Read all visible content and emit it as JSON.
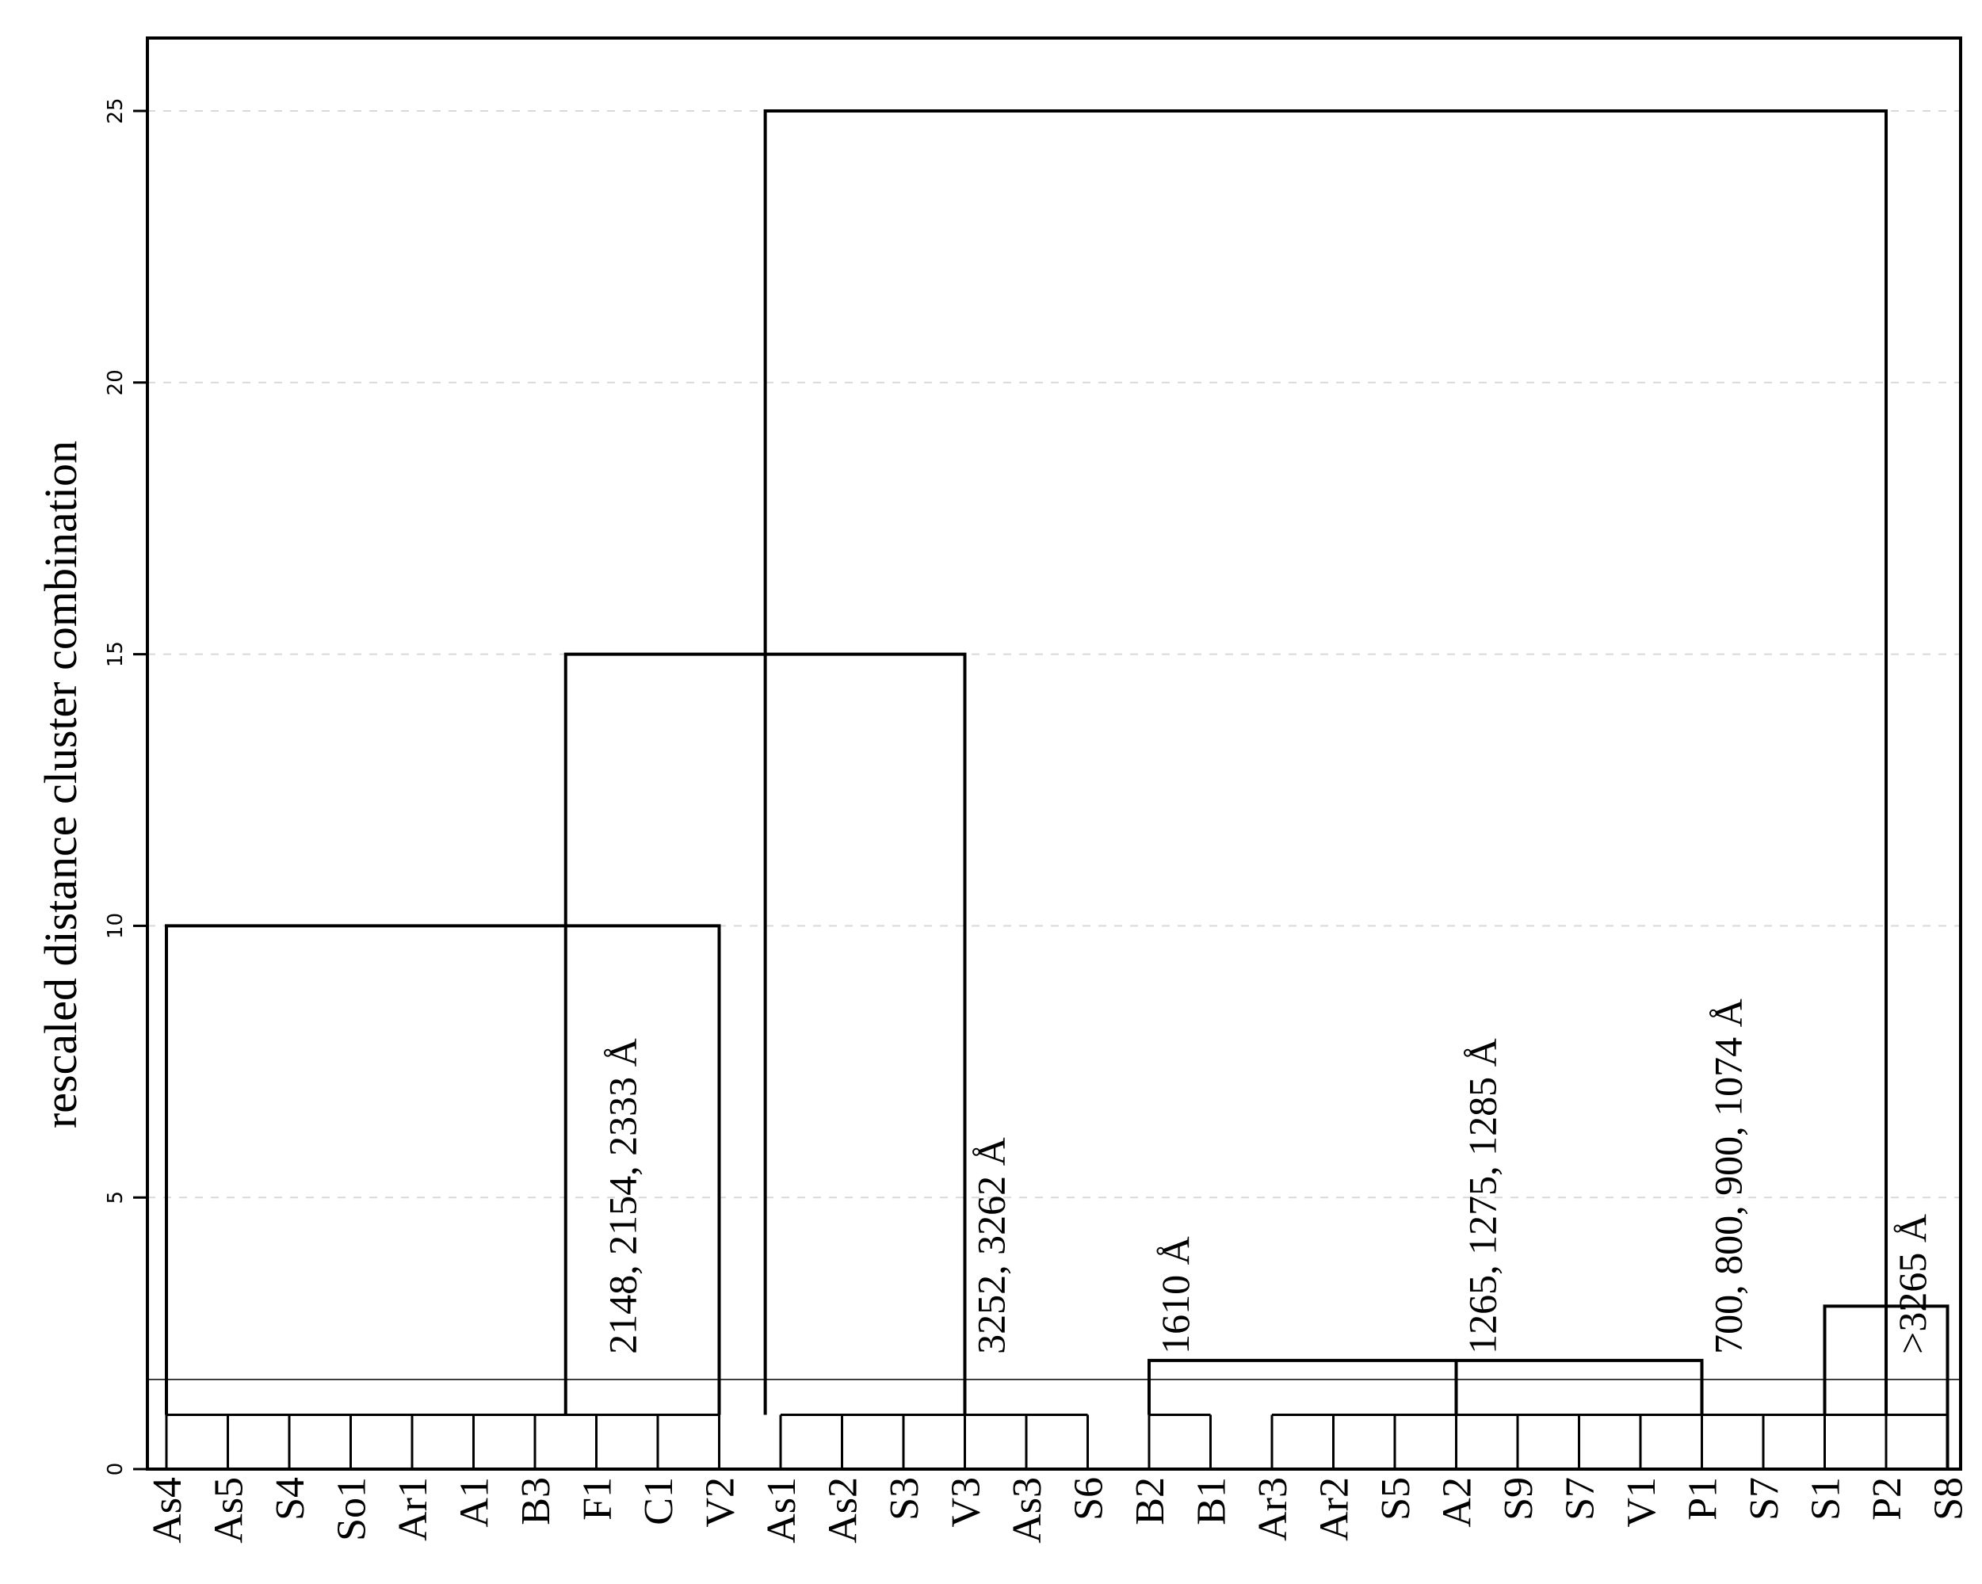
{
  "chart_data": {
    "type": "dendrogram",
    "ylabel": "rescaled distance cluster combination",
    "ylim": [
      0,
      26.3
    ],
    "yticks": [
      0,
      5,
      10,
      15,
      20,
      25
    ],
    "grid": "horizontal-dashed",
    "leaves": [
      "As4",
      "As5",
      "S4",
      "So1",
      "Ar1",
      "A1",
      "B3",
      "F1",
      "C1",
      "V2",
      "As1",
      "As2",
      "S3",
      "V3",
      "As3",
      "S6",
      "B2",
      "B1",
      "Ar3",
      "Ar2",
      "S5",
      "A2",
      "S9",
      "S7",
      "V1",
      "P1",
      "S7",
      "S1",
      "P2",
      "S8"
    ],
    "base_level": 1,
    "cut_line": 1.65,
    "merges": [
      {
        "left": 0,
        "right": 9,
        "height": 10
      },
      {
        "left": 6.5,
        "right": 13,
        "height": 15
      },
      {
        "left": 9.75,
        "right": 28,
        "height": 25
      },
      {
        "left": 16,
        "right": 25,
        "height": 2
      },
      {
        "left": 27,
        "right": 29,
        "height": 3
      }
    ],
    "annotations": [
      {
        "text": "2148, 2154, 2333 Å",
        "leaf": 7,
        "y": 2
      },
      {
        "text": "3252, 3262 Å",
        "leaf": 13,
        "y": 2
      },
      {
        "text": "1610 Å",
        "leaf": 16,
        "y": 2
      },
      {
        "text": "1265, 1275, 1285 Å",
        "leaf": 21,
        "y": 2
      },
      {
        "text": "700, 800, 900, 1074 Å",
        "leaf": 25,
        "y": 2
      },
      {
        "text": ">3265 Å",
        "leaf": 28,
        "y": 2
      }
    ]
  }
}
